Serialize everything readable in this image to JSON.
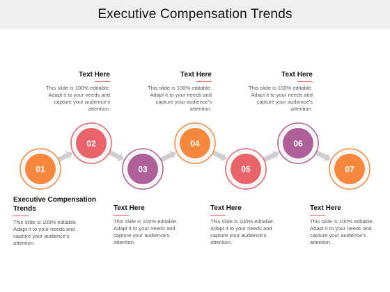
{
  "title": "Executive Compensation Trends",
  "colors": {
    "orange": "#f5883c",
    "coral": "#e8636a",
    "purple": "#b06098",
    "connector": "#cfcfcf",
    "accent_line": "#e3524f"
  },
  "nodes": [
    {
      "label": "01",
      "color": "#f5883c"
    },
    {
      "label": "02",
      "color": "#e8636a"
    },
    {
      "label": "03",
      "color": "#b06098"
    },
    {
      "label": "04",
      "color": "#f5883c"
    },
    {
      "label": "05",
      "color": "#e8636a"
    },
    {
      "label": "06",
      "color": "#b06098"
    },
    {
      "label": "07",
      "color": "#f5883c"
    }
  ],
  "top_blocks": [
    {
      "title": "Text Here",
      "body": "This slide is 100% editable. Adapt it to your needs and capture your audience's attention."
    },
    {
      "title": "Text Here",
      "body": "This slide is 100% editable. Adapt it to your needs and capture your audience's attention."
    },
    {
      "title": "Text Here",
      "body": "This slide is 100% editable. Adapt it to your needs and capture your audience's attention."
    }
  ],
  "bottom_blocks": [
    {
      "title": "Executive Compensation Trends",
      "body": "This slide is 100% editable. Adapt it to your needs and capture your audience's attention."
    },
    {
      "title": "Text Here",
      "body": "This slide is 100% editable. Adapt it to your needs and capture your audience's attention."
    },
    {
      "title": "Text Here",
      "body": "This slide is 100% editable. Adapt it to your needs and capture your audience's attention."
    },
    {
      "title": "Text Here",
      "body": "This slide is 100% editable. Adapt it to your needs and capture your audience's attention."
    }
  ]
}
